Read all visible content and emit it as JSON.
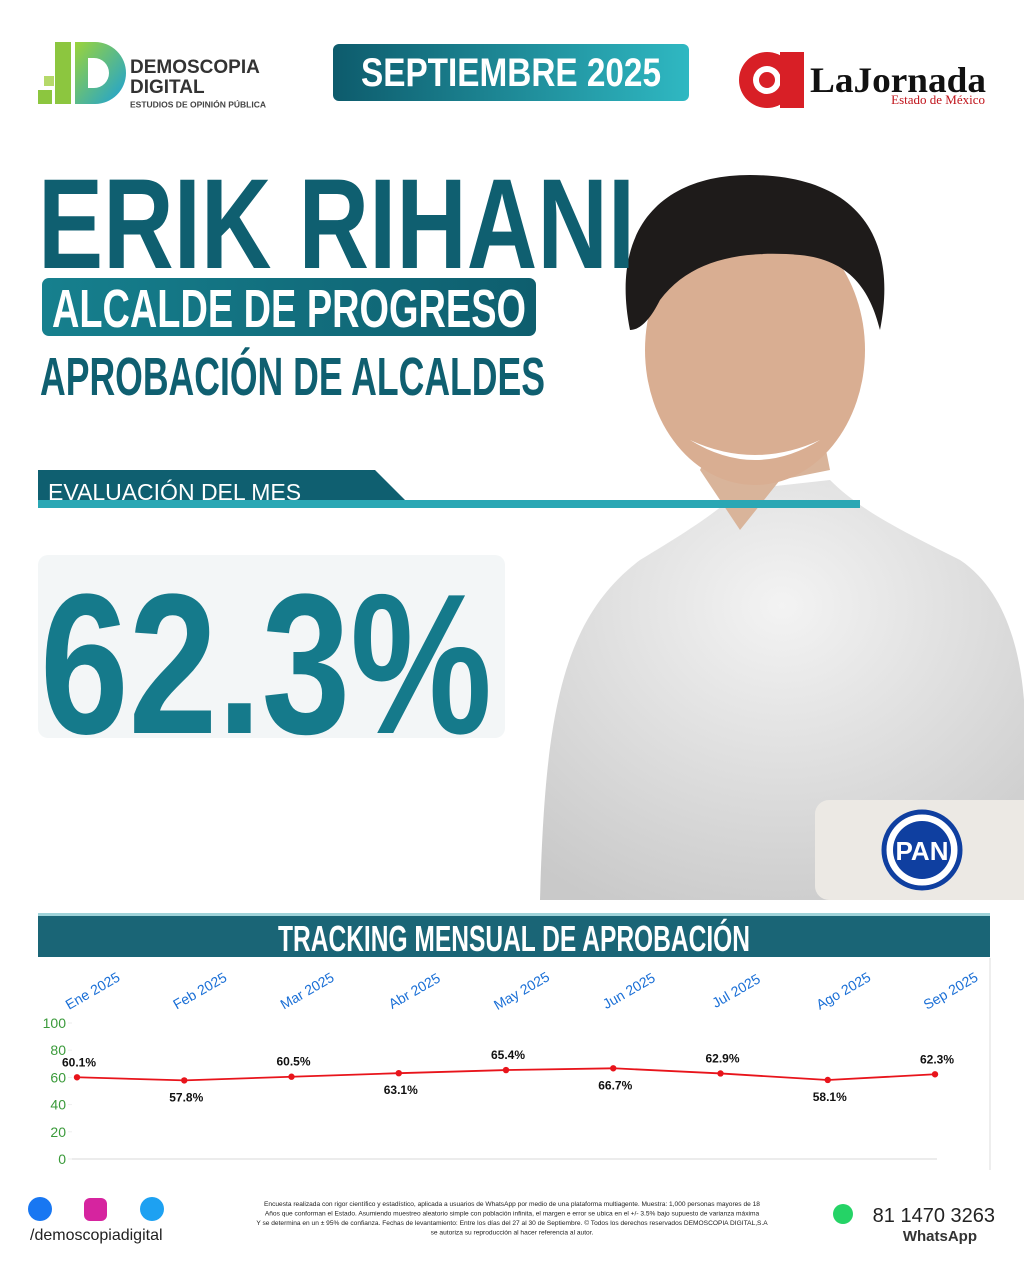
{
  "brand": {
    "name": "DEMOSCOPIA",
    "name2": "DIGITAL",
    "tagline": "ESTUDIOS DE OPINIÓN PÚBLICA"
  },
  "date_badge": "SEPTIEMBRE 2025",
  "partner": {
    "name": "LaJornada",
    "edition": "Estado de México"
  },
  "headline": {
    "name": "ERIK RIHANI",
    "role": "ALCALDE DE PROGRESO",
    "subtitle": "APROBACIÓN DE ALCALDES"
  },
  "evaluation": {
    "label": "EVALUACIÓN DEL MES",
    "value": "62.3%"
  },
  "party": "PAN",
  "chart_data": {
    "type": "line",
    "title": "TRACKING MENSUAL DE APROBACIÓN",
    "categories": [
      "Ene 2025",
      "Feb 2025",
      "Mar 2025",
      "Abr 2025",
      "May 2025",
      "Jun 2025",
      "Jul 2025",
      "Ago 2025",
      "Sep 2025"
    ],
    "values": [
      60.1,
      57.8,
      60.5,
      63.1,
      65.4,
      66.7,
      62.9,
      58.1,
      62.3
    ],
    "value_labels": [
      "60.1%",
      "57.8%",
      "60.5%",
      "63.1%",
      "65.4%",
      "66.7%",
      "62.9%",
      "58.1%",
      "62.3%"
    ],
    "color": "#e8141b",
    "ylim": [
      0,
      100
    ],
    "yticks": [
      0,
      20,
      40,
      60,
      80,
      100
    ],
    "grid": false
  },
  "footer": {
    "social": "/demoscopiadigital",
    "disclaimer": [
      "Encuesta realizada con rigor científico y estadístico, aplicada a usuarios de WhatsApp por medio de una plataforma multiagente. Muestra: 1,000 personas mayores de 18",
      "Años que conforman el Estado. Asumiendo muestreo aleatorio simple con población infinita, el margen e error se ubica en el +/- 3.5% bajo supuesto de varianza máxima",
      "Y se determina en un ± 95% de confianza. Fechas de levantamiento: Entre los días del 27 al 30 de Septiembre. © Todos los derechos reservados DEMOSCOPIA DIGITAL,S.A",
      "se autoriza su reproducción al hacer referencia al autor."
    ],
    "phone": "81 1470 3263",
    "phone_label": "WhatsApp"
  }
}
